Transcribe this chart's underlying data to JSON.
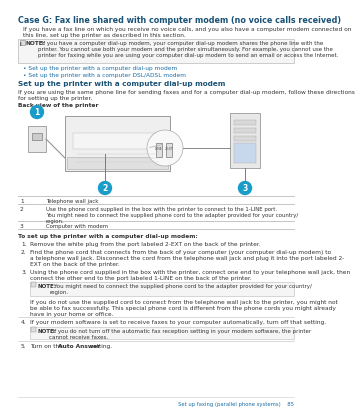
{
  "title": "Case G: Fax line shared with computer modem (no voice calls received)",
  "title_color": "#1A5276",
  "bg_color": "#ffffff",
  "body_text_color": "#333333",
  "link_color": "#1A6EA8",
  "intro_text1": "If you have a fax line on which you receive no voice calls, and you also have a computer modem connected on",
  "intro_text2": "this line, set up the printer as described in this section.",
  "note1_bold": "NOTE:",
  "note1_text": "  If you have a computer dial-up modem, your computer dial-up modem shares the phone line with the\nprinter. You cannot use both your modem and the printer simultaneously. For example, you cannot use the\nprinter for faxing while you are using your computer dial-up modem to send an email or access the Internet.",
  "bullet1": "Set up the printer with a computer dial-up modem",
  "bullet2": "Set up the printer with a computer DSL/ADSL modem",
  "section_title": "Set up the printer with a computer dial-up modem",
  "section_body1": "If you are using the same phone line for sending faxes and for a computer dial-up modem, follow these directions",
  "section_body2": "for setting up the printer.",
  "diagram_label": "Back view of the printer",
  "table_rows": [
    [
      "1",
      "Telephone wall jack"
    ],
    [
      "2",
      "Use the phone cord supplied in the box with the printer to connect to the 1-LINE port.\nYou might need to connect the supplied phone cord to the adapter provided for your country/\nregion."
    ],
    [
      "3",
      "Computer with modem"
    ]
  ],
  "setup_title": "To set up the printer with a computer dial-up modem:",
  "step1": "Remove the white plug from the port labeled 2-EXT on the back of the printer.",
  "step2a": "Find the phone cord that connects from the back of your computer (your computer dial-up modem) to",
  "step2b": "a telephone wall jack. Disconnect the cord from the telephone wall jack and plug it into the port labeled 2-",
  "step2c": "EXT on the back of the printer.",
  "step3a": "Using the phone cord supplied in the box with the printer, connect one end to your telephone wall jack, then",
  "step3b": "connect the other end to the port labeled 1-LINE on the back of the printer.",
  "note3_bold": "NOTE:",
  "note3_text": "   You might need to connect the supplied phone cord to the adapter provided for your country/\nregion.",
  "note3_extra": "If you do not use the supplied cord to connect from the telephone wall jack to the printer, you might not\nbe able to fax successfully. This special phone cord is different from the phone cords you might already\nhave in your home or office.",
  "step4": "If your modem software is set to receive faxes to your computer automatically, turn off that setting.",
  "note4_bold": "NOTE:",
  "note4_text": "  If you do not turn off the automatic fax reception setting in your modem software, the printer\ncannot receive faxes.",
  "step5a": "Turn on the ",
  "step5b": "Auto Answer",
  "step5c": " setting.",
  "footer_text": "Set up faxing (parallel phone systems)",
  "footer_page": "85",
  "circle_color": "#1A9CC8",
  "note_border_color": "#BBBBBB",
  "table_line_color": "#BBBBBB",
  "note_bg": "#F5F5F5",
  "fs_title": 5.8,
  "fs_body": 4.2,
  "fs_note": 4.0,
  "fs_section": 5.2,
  "fs_small": 3.8
}
